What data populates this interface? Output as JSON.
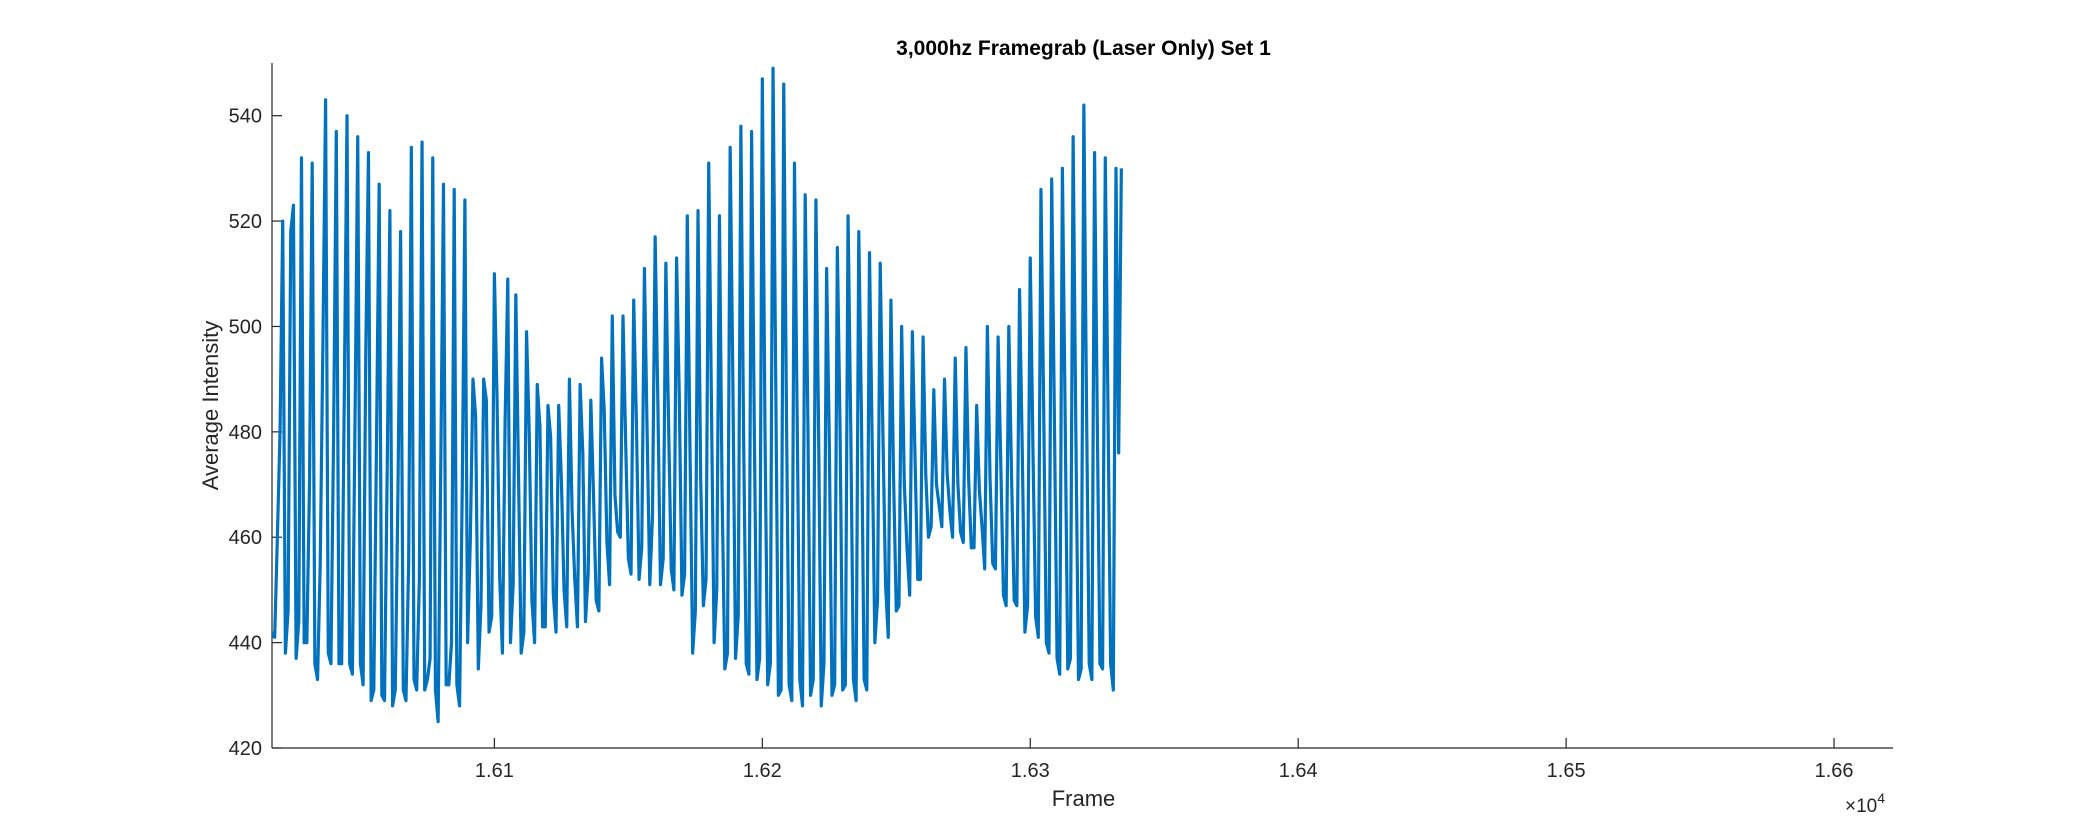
{
  "chart_data": {
    "type": "line",
    "title": "3,000hz Framegrab (Laser Only) Set 1",
    "xlabel": "Frame",
    "ylabel": "Average Intensity",
    "x_exponent_label": "×10",
    "x_exponent_power": "4",
    "xlim": [
      16017,
      16622
    ],
    "ylim": [
      420,
      550
    ],
    "x_ticks": [
      16100,
      16200,
      16300,
      16400,
      16500,
      16600
    ],
    "x_tick_labels": [
      "1.61",
      "1.62",
      "1.63",
      "1.64",
      "1.65",
      "1.66"
    ],
    "y_ticks": [
      420,
      440,
      460,
      480,
      500,
      520,
      540
    ],
    "y_tick_labels": [
      "420",
      "440",
      "460",
      "480",
      "500",
      "520",
      "540"
    ],
    "grid": false,
    "line_color": "#0072BD",
    "series": [
      {
        "x_start": 16017,
        "x_step": 1,
        "values": [
          442,
          441,
          460,
          480,
          520,
          438,
          446,
          518,
          523,
          437,
          444,
          532,
          440,
          440,
          470,
          531,
          436,
          433,
          455,
          497,
          543,
          438,
          436,
          480,
          537,
          436,
          436,
          488,
          540,
          436,
          434,
          483,
          536,
          436,
          432,
          495,
          533,
          429,
          431,
          478,
          527,
          430,
          429,
          473,
          522,
          428,
          431,
          468,
          518,
          431,
          429,
          455,
          534,
          433,
          431,
          452,
          535,
          431,
          433,
          437,
          532,
          431,
          425,
          474,
          527,
          432,
          432,
          440,
          526,
          432,
          428,
          469,
          524,
          440,
          459,
          490,
          483,
          435,
          447,
          490,
          486,
          442,
          445,
          510,
          486,
          452,
          438,
          482,
          509,
          440,
          451,
          506,
          472,
          438,
          442,
          499,
          480,
          448,
          440,
          489,
          481,
          443,
          443,
          485,
          479,
          449,
          442,
          485,
          471,
          450,
          443,
          490,
          465,
          452,
          443,
          489,
          476,
          444,
          453,
          486,
          468,
          448,
          446,
          494,
          484,
          459,
          451,
          502,
          468,
          461,
          460,
          502,
          478,
          456,
          453,
          505,
          482,
          452,
          458,
          511,
          480,
          451,
          464,
          517,
          486,
          451,
          456,
          512,
          482,
          454,
          450,
          513,
          487,
          449,
          453,
          521,
          477,
          438,
          446,
          522,
          471,
          447,
          452,
          531,
          486,
          440,
          450,
          521,
          468,
          435,
          438,
          534,
          490,
          437,
          445,
          538,
          480,
          436,
          434,
          537,
          481,
          433,
          437,
          547,
          480,
          432,
          436,
          549,
          490,
          430,
          431,
          546,
          484,
          432,
          429,
          531,
          483,
          433,
          428,
          525,
          482,
          430,
          433,
          524,
          480,
          428,
          436,
          511,
          478,
          430,
          432,
          515,
          481,
          431,
          432,
          521,
          481,
          433,
          429,
          518,
          483,
          433,
          431,
          514,
          478,
          440,
          448,
          512,
          480,
          451,
          441,
          505,
          471,
          446,
          447,
          500,
          470,
          458,
          449,
          499,
          475,
          452,
          452,
          498,
          472,
          460,
          462,
          488,
          470,
          466,
          462,
          490,
          472,
          465,
          460,
          494,
          470,
          461,
          459,
          496,
          471,
          458,
          458,
          485,
          469,
          462,
          454,
          500,
          471,
          455,
          454,
          498,
          474,
          449,
          447,
          500,
          472,
          448,
          447,
          507,
          477,
          442,
          447,
          513,
          477,
          445,
          441,
          526,
          485,
          440,
          438,
          528,
          483,
          437,
          434,
          530,
          484,
          435,
          437,
          536,
          481,
          433,
          435,
          542,
          485,
          436,
          433,
          533,
          483,
          436,
          435,
          532,
          485,
          436,
          431,
          530,
          476,
          530
        ]
      }
    ]
  }
}
